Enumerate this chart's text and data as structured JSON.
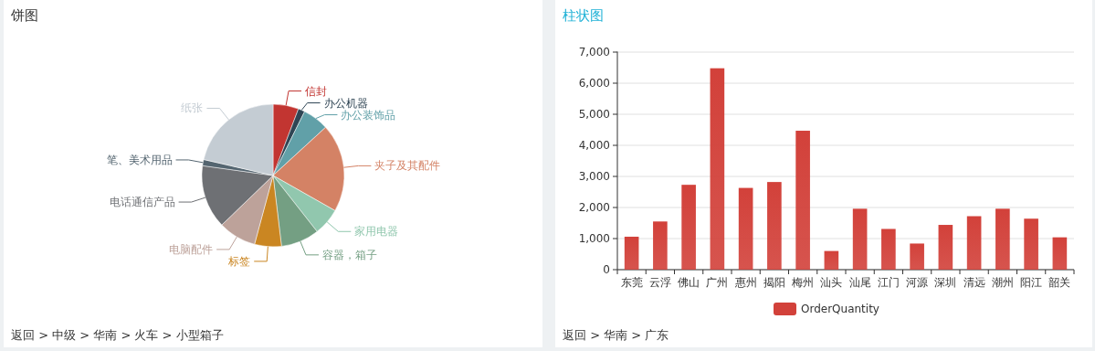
{
  "chart_data": [
    {
      "type": "pie",
      "title": "饼图",
      "categories": [
        "信封",
        "办公机器",
        "办公装饰品",
        "夹子及其配件",
        "家用电器",
        "容器，箱子",
        "标签",
        "电脑配件",
        "电话通信产品",
        "笔、美术用品",
        "纸张"
      ],
      "values": [
        5.8,
        1.5,
        5.9,
        20,
        6.2,
        8.7,
        6.1,
        8.6,
        14.4,
        1.4,
        21.4
      ],
      "colors": [
        "#c23531",
        "#2f4554",
        "#61a0a8",
        "#d48265",
        "#91c7ae",
        "#749f83",
        "#ca8622",
        "#bda29a",
        "#6e7074",
        "#546570",
        "#c4ccd3"
      ],
      "annotations": [
        "返回 > 中级 > 华南 > 火车 > 小型箱子"
      ]
    },
    {
      "type": "bar",
      "title": "柱状图",
      "categories": [
        "东莞",
        "云浮",
        "佛山",
        "广州",
        "惠州",
        "揭阳",
        "梅州",
        "汕头",
        "汕尾",
        "江门",
        "河源",
        "深圳",
        "清远",
        "潮州",
        "阳江",
        "韶关"
      ],
      "series": [
        {
          "name": "OrderQuantity",
          "color": "#d2413a",
          "values": [
            1060,
            1550,
            2730,
            6480,
            2630,
            2820,
            4470,
            600,
            1960,
            1310,
            840,
            1440,
            1720,
            1960,
            1640,
            1040
          ]
        }
      ],
      "ylim": [
        0,
        7000
      ],
      "yticks": [
        {
          "value": 0,
          "label": "0"
        },
        {
          "value": 1000,
          "label": "1,000"
        },
        {
          "value": 2000,
          "label": "2,000"
        },
        {
          "value": 3000,
          "label": "3,000"
        },
        {
          "value": 4000,
          "label": "4,000"
        },
        {
          "value": 5000,
          "label": "5,000"
        },
        {
          "value": 6000,
          "label": "6,000"
        },
        {
          "value": 7000,
          "label": "7,000"
        }
      ],
      "grid": "y",
      "legend": "bottom",
      "annotations": [
        "返回 > 华南 > 广东"
      ]
    }
  ]
}
